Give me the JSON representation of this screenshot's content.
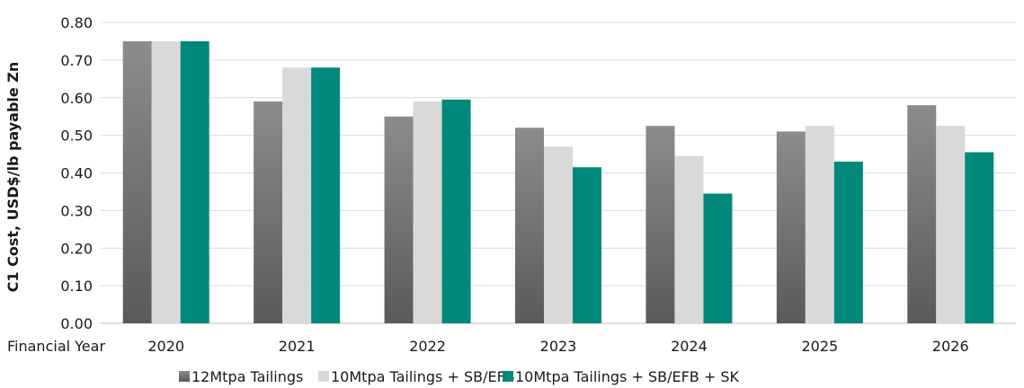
{
  "chart_data": {
    "type": "bar",
    "title": "",
    "xlabel": "Financial Year",
    "ylabel": "C1 Cost, USD$/lb payable Zn",
    "categories": [
      "2020",
      "2021",
      "2022",
      "2023",
      "2024",
      "2025",
      "2026"
    ],
    "ylim": [
      0,
      0.8
    ],
    "yticks": [
      "0.00",
      "0.10",
      "0.20",
      "0.30",
      "0.40",
      "0.50",
      "0.60",
      "0.70",
      "0.80"
    ],
    "grid": true,
    "legend_position": "bottom",
    "series": [
      {
        "name": "12Mtpa Tailings",
        "color": "#7f7f7f",
        "values": [
          0.75,
          0.59,
          0.55,
          0.52,
          0.525,
          0.51,
          0.58
        ]
      },
      {
        "name": "10Mtpa Tailings + SB/EFB",
        "color": "#d9d9d9",
        "values": [
          0.75,
          0.68,
          0.59,
          0.47,
          0.445,
          0.525,
          0.525
        ]
      },
      {
        "name": "10Mtpa Tailings + SB/EFB + SK",
        "color": "#00897b",
        "values": [
          0.75,
          0.68,
          0.595,
          0.415,
          0.345,
          0.43,
          0.455
        ]
      }
    ]
  }
}
